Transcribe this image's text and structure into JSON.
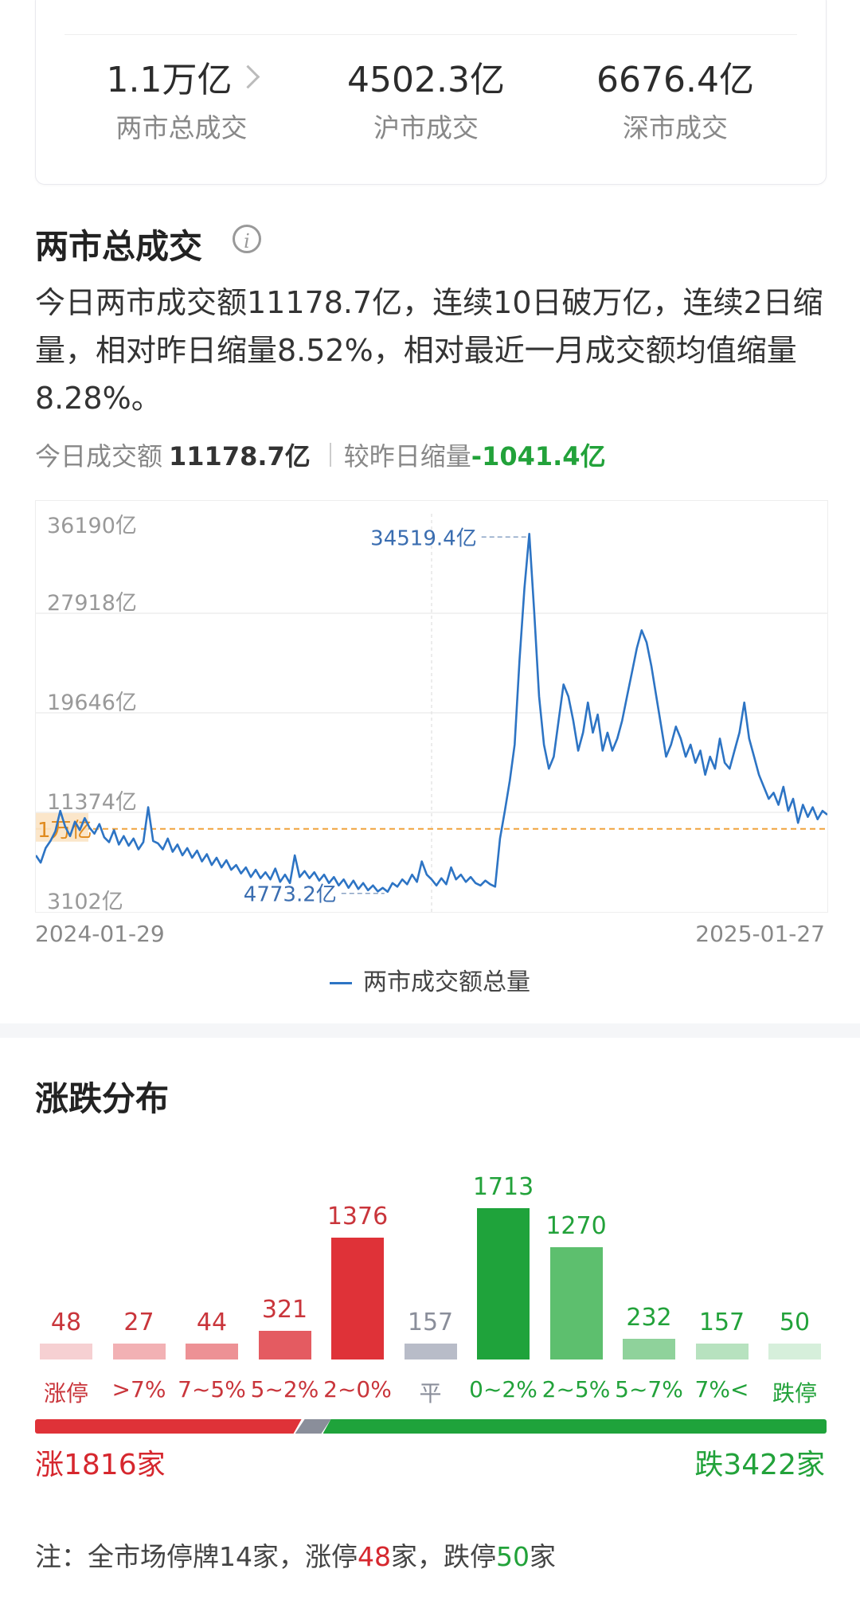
{
  "summary": {
    "total": {
      "value": "1.1万亿",
      "label": "两市总成交"
    },
    "sh": {
      "value": "4502.3亿",
      "label": "沪市成交"
    },
    "sz": {
      "value": "6676.4亿",
      "label": "深市成交"
    }
  },
  "volume_section": {
    "title": "两市总成交",
    "info_icon": "info-icon",
    "description": "今日两市成交额11178.7亿，连续10日破万亿，连续2日缩量，相对昨日缩量8.52%，相对最近一月成交额均值缩量8.28%。",
    "today_label": "今日成交额",
    "today_value": "11178.7亿",
    "compare_label": "较昨日缩量",
    "compare_value": "-1041.4亿",
    "line_color": "#2d74c4",
    "ref_color": "#f0a23c"
  },
  "chart_data": {
    "type": "line",
    "series_name": "两市成交额总量",
    "y_ticks": [
      "36190亿",
      "27918亿",
      "19646亿",
      "11374亿",
      "3102亿"
    ],
    "ref_line_label": "1万亿",
    "max_label": "34519.4亿",
    "min_label": "4773.2亿",
    "x_start": "2024-01-29",
    "x_end": "2025-01-27",
    "ylim": [
      3102,
      36190
    ],
    "values": [
      7800,
      7200,
      8400,
      9000,
      9800,
      11500,
      10200,
      9400,
      10600,
      9900,
      10900,
      10100,
      9600,
      10400,
      9300,
      8900,
      9900,
      8700,
      9400,
      8600,
      9200,
      8300,
      8900,
      11800,
      9000,
      8800,
      8300,
      9200,
      8100,
      8700,
      7800,
      8400,
      7600,
      8200,
      7300,
      7900,
      7000,
      7600,
      6800,
      7400,
      6600,
      7000,
      6300,
      6800,
      6000,
      6600,
      5900,
      6400,
      5800,
      6700,
      5600,
      6200,
      5500,
      7800,
      6000,
      6500,
      5900,
      6400,
      5700,
      6200,
      5500,
      6000,
      5300,
      5800,
      5100,
      5700,
      5000,
      5500,
      4900,
      5300,
      4800,
      5100,
      4773,
      5500,
      5200,
      5800,
      5400,
      6200,
      5600,
      7300,
      6200,
      5800,
      5300,
      5900,
      5400,
      6800,
      5800,
      6200,
      5600,
      6000,
      5500,
      5300,
      5700,
      5400,
      5200,
      9200,
      11500,
      14000,
      17000,
      24000,
      30000,
      34519,
      28000,
      21000,
      17000,
      15000,
      16000,
      19000,
      22000,
      21000,
      19000,
      16500,
      18000,
      20500,
      18000,
      19500,
      16500,
      18000,
      16500,
      17500,
      19000,
      21000,
      23000,
      25000,
      26500,
      25500,
      23500,
      21000,
      18500,
      16000,
      17000,
      18500,
      17500,
      16000,
      17000,
      15500,
      16500,
      14500,
      16000,
      15000,
      17500,
      15500,
      15000,
      16500,
      18000,
      20500,
      17500,
      16000,
      14500,
      13500,
      12500,
      13000,
      12000,
      13500,
      11500,
      12500,
      10500,
      12000,
      11000,
      11800,
      10800,
      11500,
      11178.7
    ]
  },
  "distribution": {
    "title": "涨跌分布",
    "bars": [
      {
        "label": "涨停",
        "value": 48,
        "color": "#f6d0d2",
        "text": "#c9353b"
      },
      {
        "label": ">7%",
        "value": 27,
        "color": "#f2b1b4",
        "text": "#c9353b"
      },
      {
        "label": "7~5%",
        "value": 44,
        "color": "#ed9195",
        "text": "#c9353b"
      },
      {
        "label": "5~2%",
        "value": 321,
        "color": "#e45b61",
        "text": "#c9353b"
      },
      {
        "label": "2~0%",
        "value": 1376,
        "color": "#df3238",
        "text": "#c9353b"
      },
      {
        "label": "平",
        "value": 157,
        "color": "#b8bcc8",
        "text": "#8a8e9a"
      },
      {
        "label": "0~2%",
        "value": 1713,
        "color": "#1fa33b",
        "text": "#22a23a"
      },
      {
        "label": "2~5%",
        "value": 1270,
        "color": "#5dbf6e",
        "text": "#22a23a"
      },
      {
        "label": "5~7%",
        "value": 232,
        "color": "#8fd29b",
        "text": "#22a23a"
      },
      {
        "label": "7%<",
        "value": 157,
        "color": "#b7e2bf",
        "text": "#22a23a"
      },
      {
        "label": "跌停",
        "value": 50,
        "color": "#d6efdb",
        "text": "#22a23a"
      }
    ],
    "up_text": "涨1816家",
    "down_text": "跌3422家",
    "up_count": 1816,
    "flat_count": 157,
    "down_count": 3422,
    "up_color": "#df3238",
    "down_color": "#1fa33b"
  },
  "note": {
    "prefix": "注：全市场停牌14家，",
    "limit_up_label": "涨停",
    "limit_up_count": "48",
    "unit1": "家，",
    "limit_down_label": "跌停",
    "limit_down_count": "50",
    "unit2": "家"
  }
}
